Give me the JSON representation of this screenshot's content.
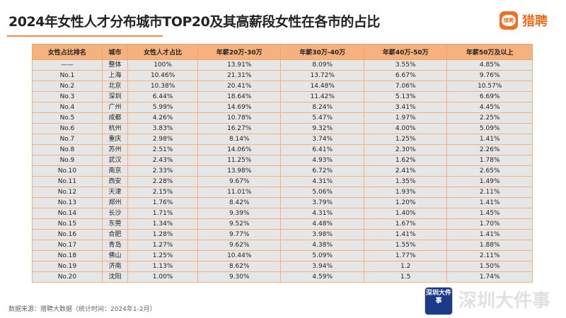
{
  "title": "2024年女性人才分布城市TOP20及其高薪段女性在各市的占比",
  "logo": {
    "icon_text": "猎聘",
    "text": "猎聘"
  },
  "table": {
    "headers": [
      "女性占比排名",
      "城市",
      "女性人才占比",
      "年薪20万-30万",
      "年薪30万-40万",
      "年薪40万-50万",
      "年薪50万及以上"
    ],
    "rows": [
      [
        "——",
        "整体",
        "100%",
        "13.91%",
        "8.09%",
        "3.55%",
        "4.85%"
      ],
      [
        "No.1",
        "上海",
        "10.46%",
        "21.31%",
        "13.72%",
        "6.67%",
        "9.76%"
      ],
      [
        "No.2",
        "北京",
        "10.38%",
        "20.41%",
        "14.48%",
        "7.06%",
        "10.57%"
      ],
      [
        "No.3",
        "深圳",
        "6.44%",
        "18.64%",
        "11.42%",
        "5.13%",
        "6.69%"
      ],
      [
        "No.4",
        "广州",
        "5.99%",
        "14.69%",
        "8.24%",
        "3.41%",
        "4.45%"
      ],
      [
        "No.5",
        "成都",
        "4.26%",
        "10.78%",
        "5.47%",
        "1.97%",
        "2.25%"
      ],
      [
        "No.6",
        "杭州",
        "3.83%",
        "16.27%",
        "9.32%",
        "4.00%",
        "5.09%"
      ],
      [
        "No.7",
        "重庆",
        "2.98%",
        "8.14%",
        "3.74%",
        "1.25%",
        "1.41%"
      ],
      [
        "No.8",
        "苏州",
        "2.51%",
        "14.06%",
        "6.41%",
        "2.30%",
        "2.26%"
      ],
      [
        "No.9",
        "武汉",
        "2.43%",
        "11.25%",
        "4.93%",
        "1.62%",
        "1.78%"
      ],
      [
        "No.10",
        "南京",
        "2.33%",
        "13.98%",
        "6.72%",
        "2.41%",
        "2.65%"
      ],
      [
        "No.11",
        "西安",
        "2.28%",
        "9.67%",
        "4.31%",
        "1.35%",
        "1.49%"
      ],
      [
        "No.12",
        "天津",
        "2.15%",
        "11.01%",
        "5.06%",
        "1.93%",
        "2.11%"
      ],
      [
        "No.13",
        "郑州",
        "1.76%",
        "8.42%",
        "3.79%",
        "1.20%",
        "1.41%"
      ],
      [
        "No.14",
        "长沙",
        "1.71%",
        "9.39%",
        "4.31%",
        "1.40%",
        "1.45%"
      ],
      [
        "No.15",
        "东莞",
        "1.34%",
        "9.52%",
        "4.48%",
        "1.67%",
        "1.70%"
      ],
      [
        "No.16",
        "合肥",
        "1.28%",
        "9.77%",
        "3.98%",
        "1.41%",
        "1.41%"
      ],
      [
        "No.17",
        "青岛",
        "1.27%",
        "9.62%",
        "4.38%",
        "1.55%",
        "1.88%"
      ],
      [
        "No.18",
        "佛山",
        "1.25%",
        "10.44%",
        "5.09%",
        "1.77%",
        "2.11%"
      ],
      [
        "No.19",
        "济南",
        "1.13%",
        "8.62%",
        "3.94%",
        "1.2",
        "1.50%"
      ],
      [
        "No.20",
        "沈阳",
        "1.00%",
        "9.30%",
        "4.59%",
        "1.5",
        "1.74%"
      ]
    ]
  },
  "source": "数据来源：猎聘大数据（统计时间：2024年1-2月）",
  "watermark": {
    "badge": "深圳大件事",
    "text": "深圳大件事"
  }
}
